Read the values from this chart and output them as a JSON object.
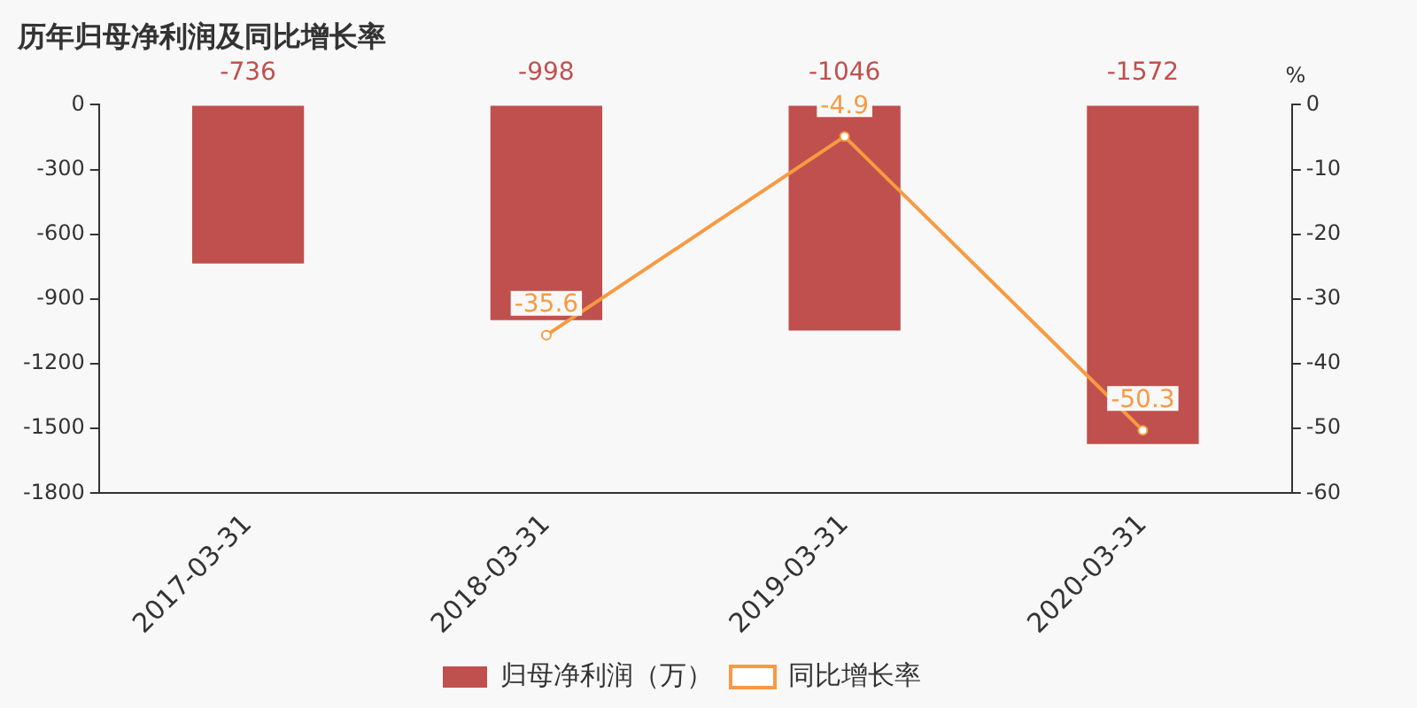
{
  "chart_data": {
    "type": "bar",
    "title": "历年归母净利润及同比增长率",
    "y2label": "%",
    "categories": [
      "2017-03-31",
      "2018-03-31",
      "2019-03-31",
      "2020-03-31"
    ],
    "series": [
      {
        "name": "归母净利润（万）",
        "color": "#c0504d",
        "values": [
          -736,
          -998,
          -1046,
          -1572
        ]
      },
      {
        "name": "同比增长率",
        "type": "line",
        "axis": "y2",
        "color": "#f79a42",
        "values": [
          null,
          -35.6,
          -4.9,
          -50.3
        ]
      }
    ],
    "ylim": [
      -1800,
      0
    ],
    "yticks": [
      0,
      -300,
      -600,
      -900,
      -1200,
      -1500,
      -1800
    ],
    "y2lim": [
      -60,
      0
    ],
    "y2ticks": [
      0,
      -10,
      -20,
      -30,
      -40,
      -50,
      -60
    ],
    "data_labels": true,
    "legend": "bottom",
    "grid": false,
    "marker": "circle"
  }
}
